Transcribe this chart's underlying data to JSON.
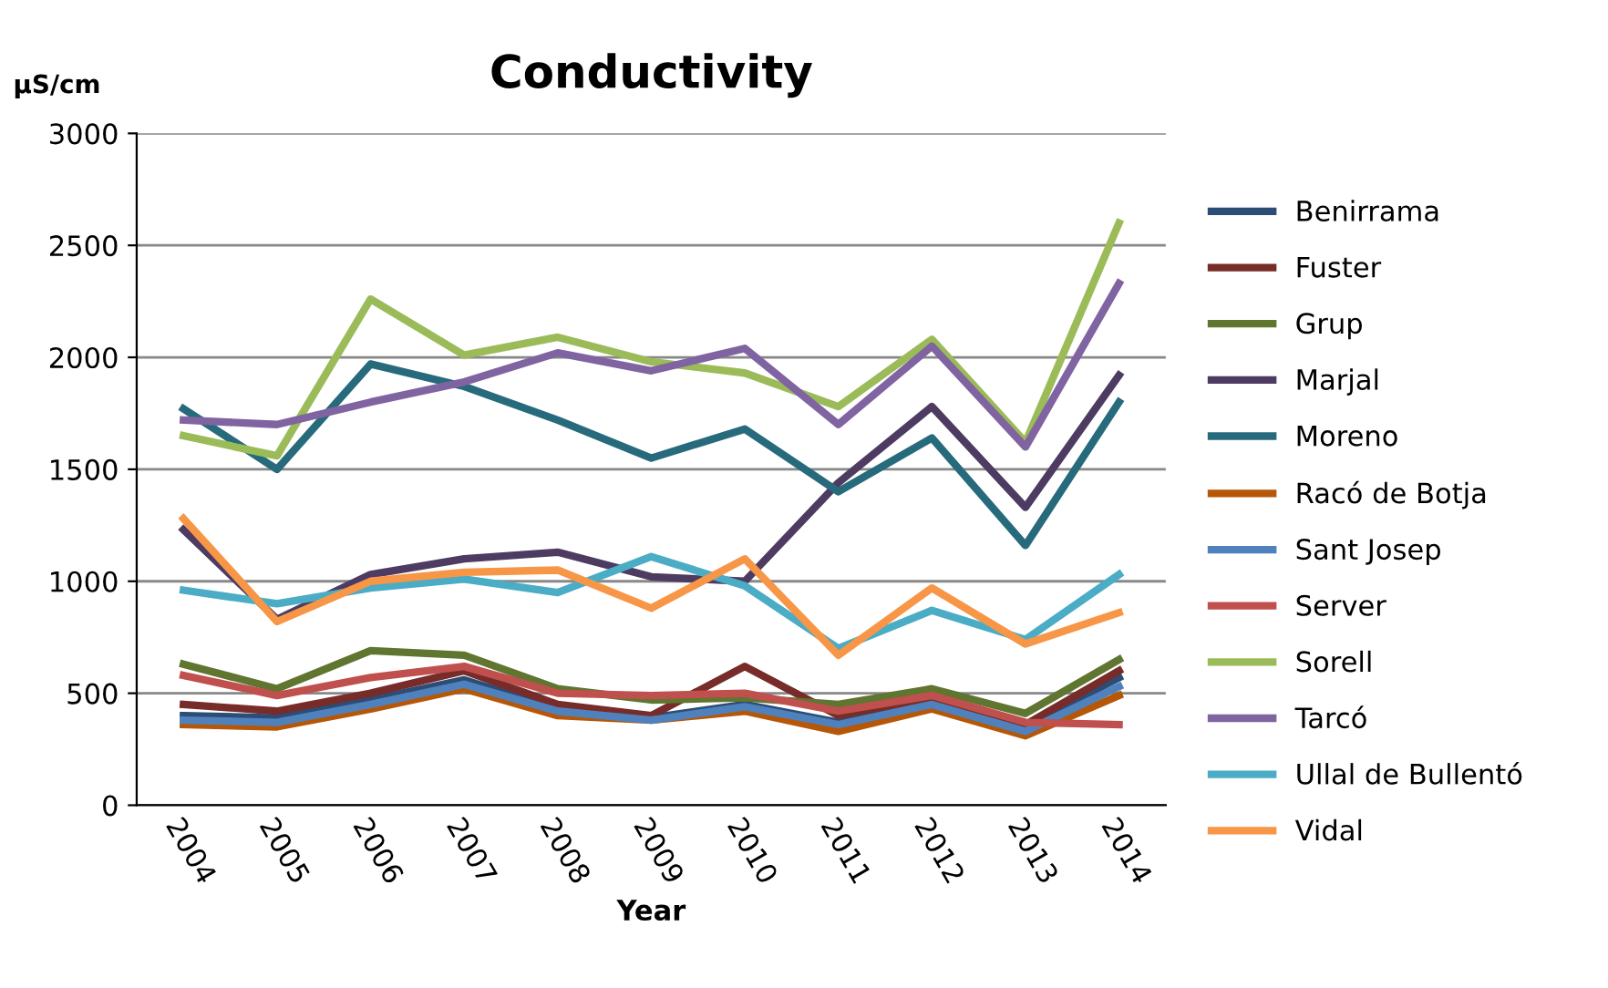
{
  "chart_data": {
    "type": "line",
    "title": "Conductivity",
    "xlabel": "Year",
    "ylabel": "µS/cm",
    "categories": [
      "2004",
      "2005",
      "2006",
      "2007",
      "2008",
      "2009",
      "2010",
      "2011",
      "2012",
      "2013",
      "2014"
    ],
    "ylim": [
      0,
      3000
    ],
    "yticks": [
      0,
      500,
      1000,
      1500,
      2000,
      2500,
      3000
    ],
    "grid": "y",
    "legend": "right",
    "marker": "none",
    "line_style": "solid",
    "series": [
      {
        "name": "Benirrama",
        "color": "#2c4d75",
        "values": [
          400,
          390,
          470,
          560,
          430,
          390,
          450,
          370,
          470,
          350,
          570
        ]
      },
      {
        "name": "Fuster",
        "color": "#772c2a",
        "values": [
          450,
          420,
          500,
          600,
          450,
          400,
          620,
          400,
          480,
          360,
          600
        ]
      },
      {
        "name": "Grup",
        "color": "#5f7530",
        "values": [
          630,
          520,
          690,
          670,
          520,
          470,
          480,
          450,
          520,
          410,
          650
        ]
      },
      {
        "name": "Marjal",
        "color": "#4d3b62",
        "values": [
          1230,
          830,
          1030,
          1100,
          1130,
          1020,
          1000,
          1440,
          1780,
          1330,
          1920
        ]
      },
      {
        "name": "Moreno",
        "color": "#276a7c",
        "values": [
          1770,
          1500,
          1970,
          1870,
          1720,
          1550,
          1680,
          1400,
          1640,
          1160,
          1800
        ]
      },
      {
        "name": "Racó de Botja",
        "color": "#b65708",
        "values": [
          360,
          350,
          430,
          520,
          400,
          380,
          420,
          330,
          430,
          310,
          490
        ]
      },
      {
        "name": "Sant Josep",
        "color": "#4f81bd",
        "values": [
          380,
          370,
          450,
          540,
          420,
          380,
          440,
          360,
          450,
          330,
          530
        ]
      },
      {
        "name": "Server",
        "color": "#c0504d",
        "values": [
          580,
          490,
          570,
          620,
          500,
          490,
          500,
          420,
          490,
          370,
          360
        ]
      },
      {
        "name": "Sorell",
        "color": "#9bbb59",
        "values": [
          1650,
          1560,
          2260,
          2010,
          2090,
          1980,
          1930,
          1780,
          2080,
          1620,
          2600
        ]
      },
      {
        "name": "Tarcó",
        "color": "#8064a2",
        "values": [
          1720,
          1700,
          1800,
          1890,
          2020,
          1940,
          2040,
          1700,
          2050,
          1600,
          2330
        ]
      },
      {
        "name": "Ullal de Bullentó",
        "color": "#4bacc6",
        "values": [
          960,
          900,
          970,
          1010,
          950,
          1110,
          980,
          700,
          870,
          740,
          1030
        ]
      },
      {
        "name": "Vidal",
        "color": "#f79646",
        "values": [
          1280,
          820,
          1000,
          1040,
          1050,
          880,
          1100,
          670,
          970,
          720,
          860
        ]
      }
    ]
  }
}
